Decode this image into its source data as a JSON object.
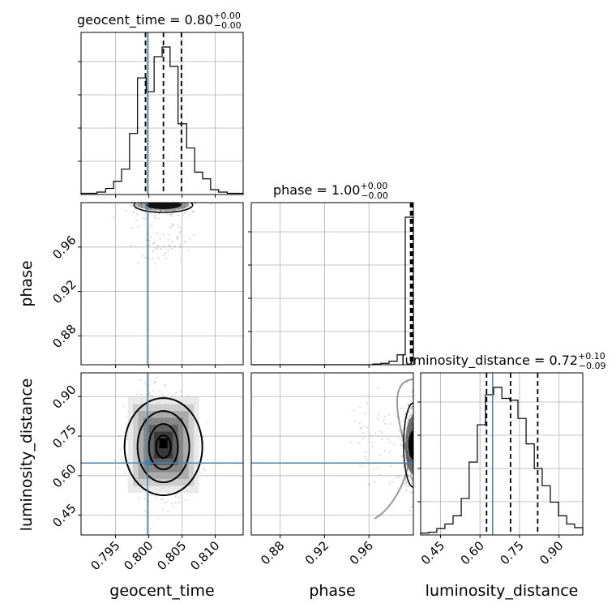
{
  "chart_data": {
    "type": "corner",
    "parameters": [
      "geocent_time",
      "phase",
      "luminosity_distance"
    ],
    "truths": {
      "geocent_time": 0.7998,
      "phase": null,
      "luminosity_distance": 0.648
    },
    "titles": [
      {
        "param": "geocent_time",
        "prefix": "geocent_time = ",
        "value": "0.80",
        "plus": "+0.00",
        "minus": "−0.00"
      },
      {
        "param": "phase",
        "prefix": "phase = ",
        "value": "1.00",
        "plus": "+0.00",
        "minus": "−0.00"
      },
      {
        "param": "luminosity_distance",
        "prefix": "luminosity_distance = ",
        "value": "0.72",
        "plus": "+0.10",
        "minus": "−0.09"
      }
    ],
    "axis_labels": {
      "x": [
        "geocent_time",
        "phase",
        "luminosity_distance"
      ],
      "y": [
        "phase",
        "luminosity_distance"
      ]
    },
    "ticks": {
      "geocent_time": [
        "0.795",
        "0.800",
        "0.805",
        "0.810"
      ],
      "phase": [
        "0.88",
        "0.92",
        "0.96"
      ],
      "luminosity_distance": [
        "0.45",
        "0.60",
        "0.75",
        "0.90"
      ]
    },
    "tick_values": {
      "geocent_time": [
        0.795,
        0.8,
        0.805,
        0.81
      ],
      "phase": [
        0.88,
        0.92,
        0.96
      ],
      "luminosity_distance": [
        0.45,
        0.6,
        0.75,
        0.9
      ]
    },
    "ranges": {
      "geocent_time": [
        0.7898,
        0.8142
      ],
      "phase": [
        0.854,
        1.0
      ],
      "luminosity_distance": [
        0.375,
        0.99
      ]
    },
    "quantiles": {
      "geocent_time": [
        0.7995,
        0.8022,
        0.8049
      ],
      "phase": [
        0.9975,
        0.9985,
        0.9994
      ],
      "luminosity_distance": [
        0.625,
        0.716,
        0.819
      ]
    },
    "histograms": {
      "geocent_time": {
        "bin_edges": [
          0.7898,
          0.791,
          0.7922,
          0.7935,
          0.7947,
          0.7959,
          0.7971,
          0.7983,
          0.7996,
          0.8008,
          0.802,
          0.8032,
          0.8044,
          0.8057,
          0.8069,
          0.8081,
          0.8093,
          0.8105,
          0.8118,
          0.813,
          0.8142
        ],
        "counts": [
          2,
          2,
          4,
          10,
          22,
          42,
          101,
          193,
          170,
          228,
          244,
          212,
          117,
          77,
          37,
          26,
          8,
          4,
          2,
          2
        ]
      },
      "phase": {
        "bin_edges": [
          0.854,
          0.8613,
          0.8686,
          0.8759,
          0.8832,
          0.8905,
          0.8978,
          0.9051,
          0.9124,
          0.9197,
          0.927,
          0.9343,
          0.9416,
          0.9489,
          0.9562,
          0.9635,
          0.9708,
          0.9781,
          0.9854,
          0.9927,
          1.0
        ],
        "counts": [
          0,
          0,
          0,
          0,
          0,
          0,
          0,
          0,
          0,
          0,
          0,
          0,
          0,
          0,
          0,
          1,
          2,
          5,
          14,
          208
        ]
      },
      "luminosity_distance": {
        "bin_edges": [
          0.375,
          0.406,
          0.436,
          0.467,
          0.498,
          0.529,
          0.559,
          0.59,
          0.621,
          0.652,
          0.683,
          0.713,
          0.744,
          0.775,
          0.806,
          0.836,
          0.867,
          0.898,
          0.929,
          0.959,
          0.99
        ],
        "counts": [
          2,
          3,
          7,
          12,
          21,
          40,
          80,
          121,
          154,
          162,
          150,
          148,
          128,
          100,
          73,
          54,
          36,
          21,
          12,
          8
        ]
      }
    },
    "grid": true
  }
}
